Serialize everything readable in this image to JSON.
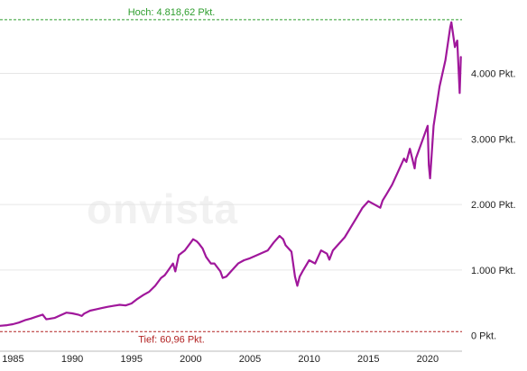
{
  "watermark": "onvista",
  "chart_data": {
    "type": "line",
    "series": [
      {
        "color": "#a0179b",
        "x": [
          1983.9,
          1984.5,
          1985.0,
          1985.5,
          1986.0,
          1986.5,
          1987.0,
          1987.5,
          1987.8,
          1988.0,
          1988.5,
          1989.0,
          1989.5,
          1990.0,
          1990.5,
          1990.8,
          1991.0,
          1991.5,
          1992.0,
          1992.5,
          1993.0,
          1993.5,
          1994.0,
          1994.5,
          1995.0,
          1995.5,
          1996.0,
          1996.5,
          1997.0,
          1997.5,
          1997.8,
          1998.0,
          1998.5,
          1998.7,
          1999.0,
          1999.5,
          2000.0,
          2000.2,
          2000.5,
          2000.7,
          2001.0,
          2001.3,
          2001.7,
          2002.0,
          2002.5,
          2002.7,
          2003.0,
          2003.5,
          2004.0,
          2004.5,
          2005.0,
          2005.5,
          2006.0,
          2006.5,
          2007.0,
          2007.5,
          2007.8,
          2008.0,
          2008.5,
          2008.8,
          2009.0,
          2009.2,
          2009.5,
          2010.0,
          2010.5,
          2011.0,
          2011.5,
          2011.7,
          2012.0,
          2012.5,
          2013.0,
          2013.5,
          2014.0,
          2014.5,
          2015.0,
          2015.5,
          2016.0,
          2016.2,
          2016.5,
          2017.0,
          2017.5,
          2018.0,
          2018.2,
          2018.5,
          2018.9,
          2019.0,
          2019.5,
          2020.0,
          2020.1,
          2020.2,
          2020.5,
          2021.0,
          2021.5,
          2021.9,
          2022.0,
          2022.3,
          2022.5,
          2022.7,
          2022.8
        ],
        "values": [
          150,
          160,
          175,
          200,
          235,
          260,
          290,
          320,
          250,
          255,
          270,
          310,
          350,
          340,
          320,
          300,
          335,
          380,
          400,
          420,
          440,
          455,
          470,
          460,
          490,
          560,
          620,
          670,
          760,
          880,
          920,
          970,
          1100,
          980,
          1230,
          1300,
          1420,
          1470,
          1440,
          1400,
          1330,
          1200,
          1100,
          1100,
          980,
          880,
          900,
          1000,
          1100,
          1150,
          1180,
          1220,
          1260,
          1300,
          1420,
          1520,
          1470,
          1380,
          1280,
          900,
          760,
          900,
          1000,
          1150,
          1100,
          1300,
          1250,
          1160,
          1300,
          1400,
          1500,
          1650,
          1800,
          1950,
          2050,
          2000,
          1950,
          2060,
          2150,
          2300,
          2500,
          2700,
          2650,
          2850,
          2550,
          2700,
          2950,
          3200,
          2600,
          2400,
          3200,
          3800,
          4200,
          4700,
          4780,
          4400,
          4500,
          3700,
          4250
        ]
      }
    ],
    "xlim": [
      1983.9,
      2022.9
    ],
    "ylim": [
      -100,
      5050
    ],
    "y_ticks": [
      {
        "value": 0,
        "label": "0 Pkt."
      },
      {
        "value": 1000,
        "label": "1.000 Pkt."
      },
      {
        "value": 2000,
        "label": "2.000 Pkt."
      },
      {
        "value": 3000,
        "label": "3.000 Pkt."
      },
      {
        "value": 4000,
        "label": "4.000 Pkt."
      }
    ],
    "x_ticks": [
      {
        "value": 1985,
        "label": "1985"
      },
      {
        "value": 1990,
        "label": "1990"
      },
      {
        "value": 1995,
        "label": "1995"
      },
      {
        "value": 2000,
        "label": "2000"
      },
      {
        "value": 2005,
        "label": "2005"
      },
      {
        "value": 2010,
        "label": "2010"
      },
      {
        "value": 2015,
        "label": "2015"
      },
      {
        "value": 2020,
        "label": "2020"
      }
    ],
    "reference_lines": [
      {
        "id": "high",
        "value": 4818.62,
        "label": "Hoch: 4.818,62 Pkt.",
        "color": "#2e9e2e"
      },
      {
        "id": "low",
        "value": 60.96,
        "label": "Tief: 60,96 Pkt.",
        "color": "#b22222"
      }
    ],
    "grid": true
  }
}
